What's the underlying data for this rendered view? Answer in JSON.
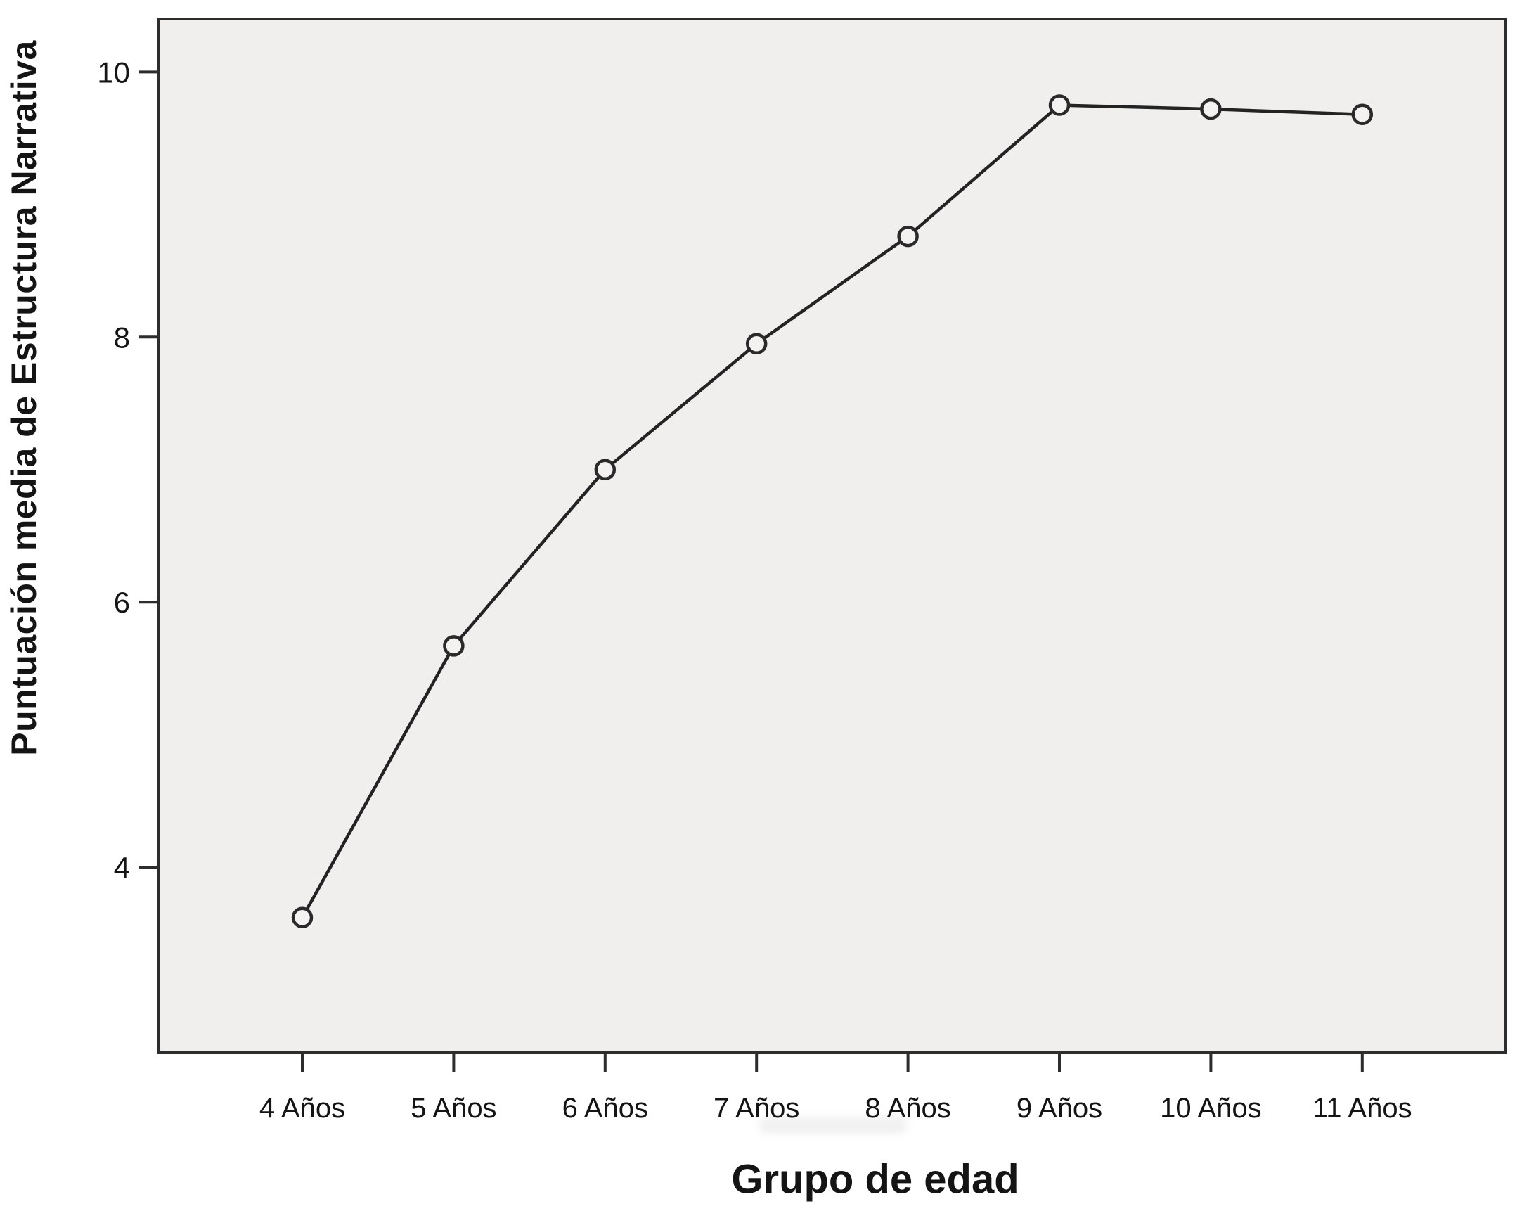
{
  "figure": {
    "background": "#ffffff",
    "plot_background": "#f0efee",
    "frame_color": "#2d2d2d",
    "line_color": "#232323",
    "marker_stroke": "#2a2a2a",
    "marker_fill": "#f3f2f1",
    "text_color": "#141414"
  },
  "chart_data": {
    "type": "line",
    "title": "",
    "xlabel": "Grupo de edad",
    "ylabel": "Puntuación media de Estructura Narrativa",
    "categories": [
      "4 Años",
      "5 Años",
      "6 Años",
      "7 Años",
      "8 Años",
      "9 Años",
      "10 Años",
      "11 Años"
    ],
    "series": [
      {
        "name": "Puntuación media de Estructura Narrativa",
        "values": [
          3.62,
          5.67,
          7.0,
          7.95,
          8.76,
          9.75,
          9.72,
          9.68
        ]
      }
    ],
    "ylim": [
      2.6,
      10.4
    ],
    "yticks": [
      10,
      8,
      6,
      4
    ],
    "grid": false,
    "legend": null,
    "marker": "open-circle"
  }
}
